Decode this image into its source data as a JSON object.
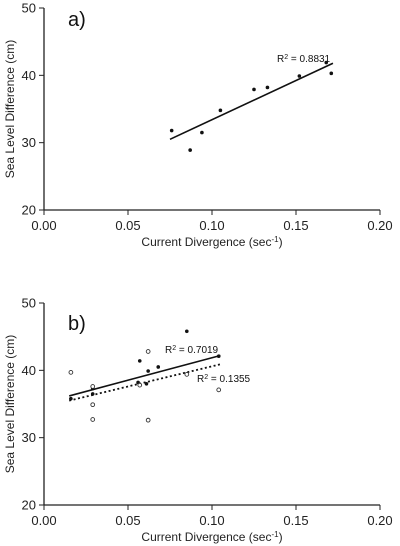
{
  "chart_data": [
    {
      "type": "scatter",
      "panel_label": "a)",
      "xlabel": "Current Divergence (sec",
      "xlabel_sup": "-1",
      "xlabel_end": ")",
      "ylabel": "Sea Level Difference (cm)",
      "xlim": [
        0,
        0.2
      ],
      "ylim": [
        20,
        50
      ],
      "xticks": [
        "0.00",
        "0.05",
        "0.10",
        "0.15",
        "0.20"
      ],
      "yticks": [
        "20",
        "30",
        "40",
        "50"
      ],
      "series": [
        {
          "points": [
            [
              0.076,
              31.8
            ],
            [
              0.087,
              28.9
            ],
            [
              0.094,
              31.5
            ],
            [
              0.105,
              34.8
            ],
            [
              0.125,
              37.9
            ],
            [
              0.133,
              38.2
            ],
            [
              0.152,
              39.9
            ],
            [
              0.168,
              41.9
            ],
            [
              0.171,
              40.3
            ]
          ],
          "marker": "filled",
          "fit": {
            "x": [
              0.075,
              0.172
            ],
            "y": [
              30.5,
              41.8
            ],
            "style": "solid",
            "r2_label": "R",
            "r2_sup": "2",
            "r2_value": " = 0.8831"
          }
        }
      ]
    },
    {
      "type": "scatter",
      "panel_label": "b)",
      "xlabel": "Current Divergence (sec",
      "xlabel_sup": "-1",
      "xlabel_end": ")",
      "ylabel": "Sea Level Difference (cm)",
      "xlim": [
        0,
        0.2
      ],
      "ylim": [
        20,
        50
      ],
      "xticks": [
        "0.00",
        "0.05",
        "0.10",
        "0.15",
        "0.20"
      ],
      "yticks": [
        "20",
        "30",
        "40",
        "50"
      ],
      "series": [
        {
          "points": [
            [
              0.016,
              35.8
            ],
            [
              0.029,
              37.3
            ],
            [
              0.029,
              36.5
            ],
            [
              0.056,
              38.2
            ],
            [
              0.057,
              41.4
            ],
            [
              0.061,
              38.0
            ],
            [
              0.062,
              39.9
            ],
            [
              0.068,
              40.5
            ],
            [
              0.085,
              45.8
            ],
            [
              0.104,
              42.1
            ]
          ],
          "marker": "filled",
          "fit": {
            "x": [
              0.015,
              0.105
            ],
            "y": [
              36.2,
              42.2
            ],
            "style": "solid",
            "r2_label": "R",
            "r2_sup": "2",
            "r2_value": " = 0.7019"
          }
        },
        {
          "points": [
            [
              0.016,
              39.7
            ],
            [
              0.029,
              37.6
            ],
            [
              0.029,
              34.9
            ],
            [
              0.029,
              32.7
            ],
            [
              0.057,
              37.8
            ],
            [
              0.062,
              42.8
            ],
            [
              0.062,
              32.6
            ],
            [
              0.085,
              39.4
            ],
            [
              0.104,
              37.1
            ]
          ],
          "marker": "open",
          "fit": {
            "x": [
              0.015,
              0.105
            ],
            "y": [
              35.5,
              40.9
            ],
            "style": "dotted",
            "r2_label": "R",
            "r2_sup": "2",
            "r2_value": " = 0.1355"
          }
        }
      ]
    }
  ]
}
